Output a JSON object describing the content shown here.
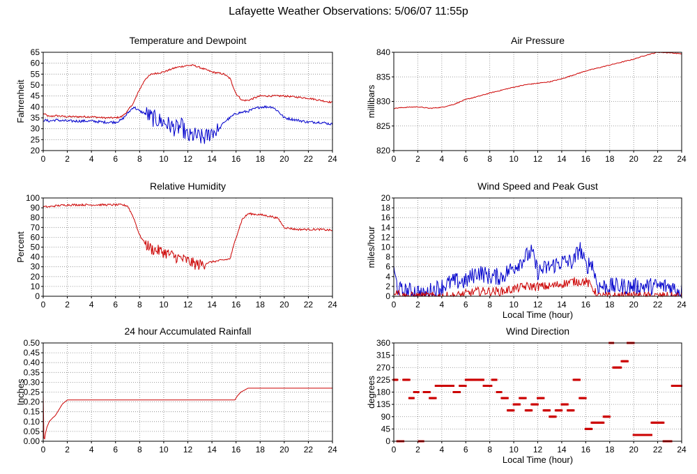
{
  "page": {
    "title": "Lafayette Weather Observations: 5/06/07 11:55p"
  },
  "chart_data": [
    {
      "id": "temp",
      "type": "line",
      "title": "Temperature and Dewpoint",
      "xlabel": "",
      "ylabel": "Fahrenheit",
      "xlim": [
        0,
        24
      ],
      "ylim": [
        20,
        65
      ],
      "xticks": [
        "0",
        "2",
        "4",
        "6",
        "8",
        "10",
        "12",
        "14",
        "16",
        "18",
        "20",
        "22",
        "24"
      ],
      "yticks": [
        "20",
        "25",
        "30",
        "35",
        "40",
        "45",
        "50",
        "55",
        "60",
        "65"
      ],
      "grid": true,
      "series": [
        {
          "color": "#cc0000",
          "noise": 0.4,
          "x": [
            0,
            0.5,
            1,
            2,
            3,
            4,
            5,
            6,
            6.5,
            7,
            7.5,
            8,
            8.5,
            9,
            10,
            11,
            12,
            12.5,
            13,
            14,
            15,
            15.5,
            16,
            16.5,
            17,
            18,
            19,
            20,
            21,
            22,
            23,
            24
          ],
          "values": [
            37,
            35.5,
            36,
            35.5,
            35.5,
            35.5,
            35,
            35,
            35.5,
            38,
            42,
            48,
            53,
            55,
            56,
            58,
            59,
            59,
            58,
            56,
            55,
            53,
            46,
            43,
            43,
            45,
            45,
            45,
            44.5,
            44,
            43,
            42
          ]
        },
        {
          "color": "#0000cc",
          "noise": 0.6,
          "x": [
            0,
            0.5,
            1,
            2,
            3,
            4,
            5,
            6,
            6.5,
            7,
            7.5,
            8,
            8.5,
            9,
            10,
            11,
            11.5,
            12,
            12.5,
            13,
            13.5,
            14,
            14.5,
            15,
            16,
            17,
            18,
            19,
            19.5,
            20,
            21,
            22,
            23,
            24
          ],
          "values": [
            34,
            33.5,
            34,
            33.5,
            33.5,
            33.5,
            33,
            33,
            34,
            37,
            40,
            38,
            37,
            35,
            33,
            30,
            31,
            26,
            27,
            26,
            26,
            29,
            29,
            33,
            37,
            38,
            40,
            40,
            38,
            35,
            34,
            33,
            33,
            32
          ],
          "volatile": [
            [
              8.5,
              14.5,
              4.0
            ]
          ]
        }
      ]
    },
    {
      "id": "press",
      "type": "line",
      "title": "Air Pressure",
      "xlabel": "",
      "ylabel": "millibars",
      "xlim": [
        0,
        24
      ],
      "ylim": [
        820,
        840
      ],
      "xticks": [
        "0",
        "2",
        "4",
        "6",
        "8",
        "10",
        "12",
        "14",
        "16",
        "18",
        "20",
        "22",
        "24"
      ],
      "yticks": [
        "820",
        "825",
        "830",
        "835",
        "840"
      ],
      "grid": true,
      "series": [
        {
          "color": "#cc0000",
          "noise": 0.08,
          "x": [
            0,
            1,
            2,
            3,
            4,
            5,
            6,
            7,
            8,
            9,
            10,
            11,
            12,
            13,
            14,
            15,
            16,
            17,
            18,
            19,
            20,
            21,
            22,
            23,
            24
          ],
          "values": [
            828.6,
            828.8,
            828.9,
            828.6,
            828.8,
            829.4,
            830.4,
            831.0,
            831.7,
            832.3,
            832.9,
            833.4,
            833.7,
            834.0,
            834.6,
            835.4,
            836.2,
            836.8,
            837.4,
            838.0,
            838.6,
            839.4,
            840.0,
            839.9,
            839.7
          ]
        }
      ]
    },
    {
      "id": "humid",
      "type": "line",
      "title": "Relative Humidity",
      "xlabel": "",
      "ylabel": "Percent",
      "xlim": [
        0,
        24
      ],
      "ylim": [
        0,
        100
      ],
      "xticks": [
        "0",
        "2",
        "4",
        "6",
        "8",
        "10",
        "12",
        "14",
        "16",
        "18",
        "20",
        "22",
        "24"
      ],
      "yticks": [
        "0",
        "10",
        "20",
        "30",
        "40",
        "50",
        "60",
        "70",
        "80",
        "90",
        "100"
      ],
      "grid": true,
      "series": [
        {
          "color": "#cc0000",
          "noise": 1.0,
          "x": [
            0,
            0.5,
            1,
            2,
            3,
            4,
            5,
            6,
            6.5,
            7,
            7.5,
            8,
            8.5,
            9,
            10,
            11,
            12,
            12.5,
            13,
            14,
            15,
            15.5,
            16,
            16.5,
            17,
            18,
            19,
            19.5,
            20,
            21,
            22,
            23,
            24
          ],
          "values": [
            91,
            91,
            92,
            93,
            93,
            93,
            93,
            93,
            93,
            92,
            80,
            62,
            53,
            48,
            45,
            40,
            36,
            33,
            32,
            35,
            37,
            38,
            60,
            78,
            84,
            83,
            81,
            79,
            70,
            68,
            68,
            68,
            67
          ],
          "volatile": [
            [
              8.5,
              13.5,
              6.0
            ]
          ]
        }
      ]
    },
    {
      "id": "wind",
      "type": "line",
      "title": "Wind Speed and Peak Gust",
      "xlabel": "Local Time (hour)",
      "ylabel": "miles/hour",
      "xlim": [
        0,
        24
      ],
      "ylim": [
        0,
        20
      ],
      "xticks": [
        "0",
        "2",
        "4",
        "6",
        "8",
        "10",
        "12",
        "14",
        "16",
        "18",
        "20",
        "22",
        "24"
      ],
      "yticks": [
        "0",
        "2",
        "4",
        "6",
        "8",
        "10",
        "12",
        "14",
        "16",
        "18",
        "20"
      ],
      "grid": true,
      "series": [
        {
          "color": "#0000cc",
          "noise": 1.8,
          "x": [
            0,
            0.3,
            0.6,
            1,
            2,
            2.5,
            3,
            4,
            5,
            6,
            7,
            8,
            9,
            10,
            11,
            11.5,
            12,
            13,
            14,
            15,
            15.5,
            16,
            16.5,
            17,
            18,
            19,
            20,
            21,
            22,
            23,
            24
          ],
          "values": [
            5,
            2,
            1,
            1,
            1,
            0,
            1,
            2,
            3,
            3,
            5,
            4,
            4,
            6,
            8,
            9,
            5,
            6,
            7,
            7,
            10,
            6,
            7,
            2,
            2,
            2,
            2,
            2,
            2,
            2,
            1
          ]
        },
        {
          "color": "#cc0000",
          "noise": 0.9,
          "x": [
            0,
            0.3,
            0.6,
            1,
            2,
            3,
            4,
            5,
            6,
            7,
            8,
            9,
            10,
            11,
            12,
            13,
            14,
            15,
            16,
            16.5,
            17,
            18,
            20,
            22,
            24
          ],
          "values": [
            1,
            1,
            0,
            0,
            0,
            0,
            0,
            0,
            0.5,
            1,
            1,
            1,
            1.5,
            2,
            2,
            2,
            2.5,
            3,
            3,
            2,
            0,
            0,
            0,
            0,
            0
          ]
        }
      ]
    },
    {
      "id": "rain",
      "type": "line",
      "title": "24 hour Accumulated Rainfall",
      "xlabel": "",
      "ylabel": "Inches",
      "xlim": [
        0,
        24
      ],
      "ylim": [
        0,
        0.5
      ],
      "xticks": [
        "0",
        "2",
        "4",
        "6",
        "8",
        "10",
        "12",
        "14",
        "16",
        "18",
        "20",
        "22",
        "24"
      ],
      "yticks": [
        "0.00",
        "0.05",
        "0.10",
        "0.15",
        "0.20",
        "0.25",
        "0.30",
        "0.35",
        "0.40",
        "0.45",
        "0.50"
      ],
      "grid": true,
      "series": [
        {
          "color": "#cc0000",
          "noise": 0,
          "x": [
            0,
            0.02,
            0.05,
            0.1,
            0.15,
            0.3,
            0.5,
            0.8,
            1.0,
            1.3,
            1.6,
            2.0,
            15.9,
            16.1,
            16.4,
            16.7,
            17.0,
            24
          ],
          "values": [
            0.24,
            0.13,
            0.02,
            0.0,
            0.03,
            0.07,
            0.1,
            0.12,
            0.13,
            0.16,
            0.19,
            0.21,
            0.21,
            0.23,
            0.25,
            0.26,
            0.27,
            0.27
          ]
        }
      ]
    },
    {
      "id": "dir",
      "type": "scatter",
      "title": "Wind Direction",
      "xlabel": "Local Time (hour)",
      "ylabel": "degrees",
      "xlim": [
        0,
        24
      ],
      "ylim": [
        0,
        360
      ],
      "xticks": [
        "0",
        "2",
        "4",
        "6",
        "8",
        "10",
        "12",
        "14",
        "16",
        "18",
        "20",
        "22",
        "24"
      ],
      "yticks": [
        "0",
        "45",
        "90",
        "135",
        "180",
        "225",
        "270",
        "315",
        "360"
      ],
      "grid": true,
      "series": [
        {
          "color": "#cc0000",
          "segments": [
            [
              0,
              0.3,
              225
            ],
            [
              0.3,
              0.8,
              0
            ],
            [
              0.8,
              1.3,
              225
            ],
            [
              1.3,
              1.7,
              158
            ],
            [
              1.7,
              2.1,
              180
            ],
            [
              2.1,
              2.5,
              0
            ],
            [
              2.5,
              3.0,
              180
            ],
            [
              3.0,
              3.5,
              158
            ],
            [
              3.5,
              5.0,
              203
            ],
            [
              5.0,
              5.5,
              180
            ],
            [
              5.5,
              6.0,
              203
            ],
            [
              6.0,
              7.5,
              225
            ],
            [
              7.5,
              8.2,
              203
            ],
            [
              8.2,
              8.6,
              225
            ],
            [
              8.6,
              9.0,
              180
            ],
            [
              9.0,
              9.5,
              158
            ],
            [
              9.5,
              10,
              113
            ],
            [
              10,
              10.5,
              135
            ],
            [
              10.5,
              11,
              158
            ],
            [
              11,
              11.5,
              113
            ],
            [
              11.5,
              12,
              135
            ],
            [
              12,
              12.5,
              158
            ],
            [
              12.5,
              13,
              113
            ],
            [
              13,
              13.5,
              90
            ],
            [
              13.5,
              14,
              113
            ],
            [
              14,
              14.5,
              135
            ],
            [
              14.5,
              15,
              113
            ],
            [
              15,
              15.5,
              225
            ],
            [
              15.5,
              16,
              158
            ],
            [
              16,
              16.5,
              45
            ],
            [
              16.5,
              17.5,
              68
            ],
            [
              17.5,
              18,
              90
            ],
            [
              18,
              18.3,
              360
            ],
            [
              18.3,
              19.0,
              270
            ],
            [
              19.0,
              19.5,
              293
            ],
            [
              19.5,
              20,
              360
            ],
            [
              20,
              21.5,
              23
            ],
            [
              21.5,
              22.5,
              68
            ],
            [
              22.5,
              23.2,
              0
            ],
            [
              23.2,
              24,
              203
            ]
          ]
        }
      ]
    }
  ]
}
